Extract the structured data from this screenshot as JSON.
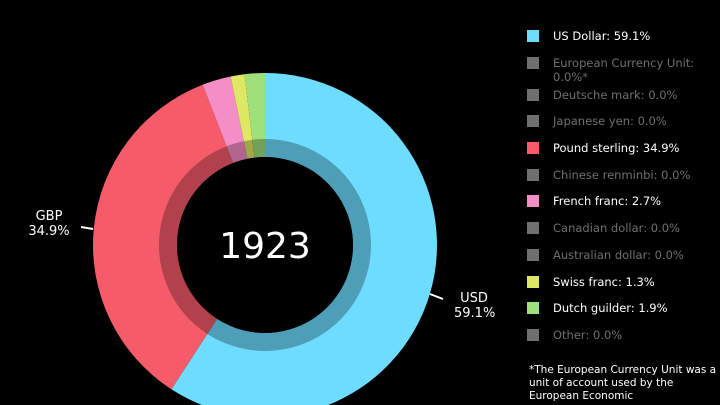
{
  "chart_data": {
    "type": "pie",
    "variant": "donut",
    "center_label": "1923",
    "slices": [
      {
        "name": "US Dollar",
        "value": 59.1,
        "color": "#6ddcff"
      },
      {
        "name": "European Currency Unit",
        "value": 0.0,
        "color": "#6f6f6f"
      },
      {
        "name": "Deutsche mark",
        "value": 0.0,
        "color": "#6f6f6f"
      },
      {
        "name": "Japanese yen",
        "value": 0.0,
        "color": "#6f6f6f"
      },
      {
        "name": "Pound sterling",
        "value": 34.9,
        "color": "#f55b69"
      },
      {
        "name": "Chinese renminbi",
        "value": 0.0,
        "color": "#6f6f6f"
      },
      {
        "name": "French franc",
        "value": 2.7,
        "color": "#f58ec6"
      },
      {
        "name": "Canadian dollar",
        "value": 0.0,
        "color": "#6f6f6f"
      },
      {
        "name": "Australian dollar",
        "value": 0.0,
        "color": "#6f6f6f"
      },
      {
        "name": "Swiss franc",
        "value": 1.3,
        "color": "#dfe865"
      },
      {
        "name": "Dutch guilder",
        "value": 1.9,
        "color": "#9fe07a"
      },
      {
        "name": "Other",
        "value": 0.0,
        "color": "#6f6f6f"
      }
    ],
    "slice_labels": [
      {
        "code": "USD",
        "percent": "59.1%"
      },
      {
        "code": "GBP",
        "percent": "34.9%"
      }
    ],
    "legend": [
      {
        "label": "US Dollar: 59.1%",
        "color": "#6ddcff",
        "active": true
      },
      {
        "label": "European Currency Unit: 0.0%*",
        "color": "#6f6f6f",
        "active": false
      },
      {
        "label": "Deutsche mark: 0.0%",
        "color": "#6f6f6f",
        "active": false
      },
      {
        "label": "Japanese yen: 0.0%",
        "color": "#6f6f6f",
        "active": false
      },
      {
        "label": "Pound sterling: 34.9%",
        "color": "#f55b69",
        "active": true
      },
      {
        "label": "Chinese renminbi: 0.0%",
        "color": "#6f6f6f",
        "active": false
      },
      {
        "label": "French franc: 2.7%",
        "color": "#f58ec6",
        "active": true
      },
      {
        "label": "Canadian dollar: 0.0%",
        "color": "#6f6f6f",
        "active": false
      },
      {
        "label": "Australian dollar: 0.0%",
        "color": "#6f6f6f",
        "active": false
      },
      {
        "label": "Swiss franc: 1.3%",
        "color": "#dfe865",
        "active": true
      },
      {
        "label": "Dutch guilder: 1.9%",
        "color": "#9fe07a",
        "active": true
      },
      {
        "label": "Other: 0.0%",
        "color": "#6f6f6f",
        "active": false
      }
    ],
    "legend_placement": "right",
    "footnote": "*The European Currency Unit was a unit of account used by the European Economic",
    "background": "#000000"
  }
}
